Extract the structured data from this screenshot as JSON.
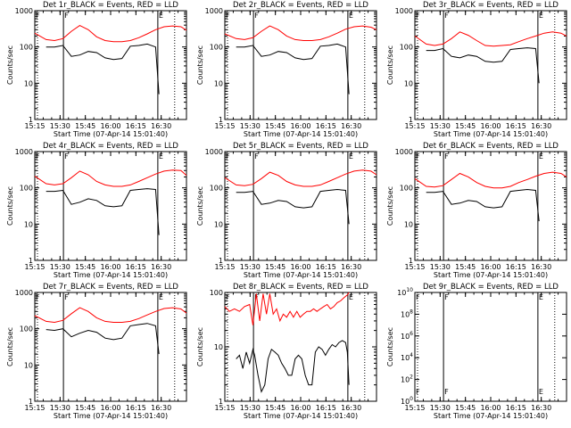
{
  "common": {
    "title_suffix": "_BLACK = Events, RED = LLD",
    "xlabel": "Start Time (07-Apr-14 15:01:40)",
    "ylabel": "Counts/sec",
    "x_ticks": [
      "15:15",
      "15:30",
      "15:45",
      "16:00",
      "16:15",
      "16:30"
    ],
    "y_ticks": [
      "1",
      "10",
      "100",
      "1000"
    ],
    "markers": [
      "F",
      "E"
    ],
    "colors": {
      "events": "#000000",
      "lld": "#ff0000"
    }
  },
  "chart_data": [
    {
      "type": "line",
      "title": "Det 1r_BLACK = Events, RED = LLD",
      "xlim_min": [
        13.3,
        103.3
      ],
      "ylim_log10": [
        0,
        3
      ],
      "series": [
        {
          "name": "BLACK = Events",
          "x": [
            20,
            25,
            30,
            35,
            40,
            45,
            50,
            55,
            60,
            65,
            70,
            75,
            80,
            85,
            87
          ],
          "y": [
            100,
            100,
            110,
            55,
            60,
            75,
            70,
            50,
            45,
            48,
            105,
            110,
            120,
            100,
            5
          ]
        },
        {
          "name": "RED = LLD",
          "x": [
            13.3,
            20,
            25,
            30,
            35,
            40,
            45,
            50,
            55,
            60,
            65,
            70,
            75,
            80,
            85,
            90,
            95,
            100,
            103.3
          ],
          "y": [
            240,
            160,
            150,
            170,
            270,
            390,
            300,
            190,
            150,
            140,
            140,
            150,
            180,
            230,
            300,
            360,
            380,
            360,
            290
          ]
        }
      ]
    },
    {
      "type": "line",
      "title": "Det 2r_BLACK = Events, RED = LLD",
      "xlim_min": [
        13.3,
        103.3
      ],
      "ylim_log10": [
        0,
        3
      ],
      "series": [
        {
          "name": "BLACK = Events",
          "x": [
            20,
            25,
            30,
            35,
            40,
            45,
            50,
            55,
            60,
            65,
            70,
            75,
            80,
            85,
            87
          ],
          "y": [
            100,
            100,
            110,
            55,
            60,
            75,
            70,
            50,
            45,
            48,
            105,
            110,
            120,
            100,
            5
          ]
        },
        {
          "name": "RED = LLD",
          "x": [
            13.3,
            20,
            25,
            30,
            35,
            40,
            45,
            50,
            55,
            60,
            65,
            70,
            75,
            80,
            85,
            90,
            95,
            100,
            103.3
          ],
          "y": [
            230,
            170,
            160,
            180,
            270,
            380,
            300,
            200,
            160,
            150,
            150,
            160,
            190,
            240,
            310,
            360,
            380,
            350,
            300
          ]
        }
      ]
    },
    {
      "type": "line",
      "title": "Det 3r_BLACK = Events, RED = LLD",
      "xlim_min": [
        13.3,
        103.3
      ],
      "ylim_log10": [
        0,
        3
      ],
      "series": [
        {
          "name": "BLACK = Events",
          "x": [
            20,
            25,
            30,
            35,
            40,
            45,
            50,
            55,
            60,
            65,
            70,
            75,
            80,
            85,
            87
          ],
          "y": [
            80,
            80,
            90,
            55,
            50,
            60,
            55,
            40,
            38,
            40,
            85,
            90,
            95,
            90,
            10
          ]
        },
        {
          "name": "RED = LLD",
          "x": [
            13.3,
            20,
            25,
            30,
            35,
            40,
            45,
            50,
            55,
            60,
            65,
            70,
            75,
            80,
            85,
            90,
            95,
            100,
            103.3
          ],
          "y": [
            200,
            120,
            110,
            120,
            170,
            260,
            210,
            150,
            110,
            105,
            110,
            115,
            140,
            170,
            200,
            240,
            260,
            240,
            200
          ]
        }
      ]
    },
    {
      "type": "line",
      "title": "Det 4r_BLACK = Events, RED = LLD",
      "xlim_min": [
        13.3,
        103.3
      ],
      "ylim_log10": [
        0,
        3
      ],
      "series": [
        {
          "name": "BLACK = Events",
          "x": [
            20,
            25,
            30,
            35,
            40,
            45,
            50,
            55,
            60,
            65,
            70,
            75,
            80,
            85,
            87
          ],
          "y": [
            80,
            80,
            85,
            35,
            40,
            50,
            45,
            32,
            30,
            32,
            85,
            90,
            95,
            90,
            5
          ]
        },
        {
          "name": "RED = LLD",
          "x": [
            13.3,
            20,
            25,
            30,
            35,
            40,
            45,
            50,
            55,
            60,
            65,
            70,
            75,
            80,
            85,
            90,
            95,
            100,
            103.3
          ],
          "y": [
            210,
            130,
            120,
            130,
            190,
            290,
            230,
            150,
            120,
            110,
            110,
            120,
            150,
            190,
            240,
            290,
            310,
            300,
            220
          ]
        }
      ]
    },
    {
      "type": "line",
      "title": "Det 5r_BLACK = Events, RED = LLD",
      "xlim_min": [
        13.3,
        103.3
      ],
      "ylim_log10": [
        0,
        3
      ],
      "series": [
        {
          "name": "BLACK = Events",
          "x": [
            20,
            25,
            30,
            35,
            40,
            45,
            50,
            55,
            60,
            65,
            70,
            75,
            80,
            85,
            87
          ],
          "y": [
            75,
            75,
            80,
            35,
            38,
            45,
            42,
            30,
            28,
            30,
            80,
            85,
            90,
            85,
            10
          ]
        },
        {
          "name": "RED = LLD",
          "x": [
            13.3,
            20,
            25,
            30,
            35,
            40,
            45,
            50,
            55,
            60,
            65,
            70,
            75,
            80,
            85,
            90,
            95,
            100,
            103.3
          ],
          "y": [
            190,
            120,
            115,
            125,
            180,
            270,
            220,
            150,
            120,
            110,
            110,
            120,
            150,
            190,
            240,
            290,
            310,
            290,
            230
          ]
        }
      ]
    },
    {
      "type": "line",
      "title": "Det 6r_BLACK = Events, RED = LLD",
      "xlim_min": [
        13.3,
        103.3
      ],
      "ylim_log10": [
        0,
        3
      ],
      "series": [
        {
          "name": "BLACK = Events",
          "x": [
            20,
            25,
            30,
            35,
            40,
            45,
            50,
            55,
            60,
            65,
            70,
            75,
            80,
            85,
            87
          ],
          "y": [
            75,
            75,
            80,
            35,
            38,
            45,
            42,
            30,
            28,
            30,
            80,
            85,
            90,
            85,
            12
          ]
        },
        {
          "name": "RED = LLD",
          "x": [
            13.3,
            20,
            25,
            30,
            35,
            40,
            45,
            50,
            55,
            60,
            65,
            70,
            75,
            80,
            85,
            90,
            95,
            100,
            103.3
          ],
          "y": [
            180,
            110,
            105,
            115,
            170,
            250,
            200,
            140,
            110,
            100,
            100,
            110,
            140,
            170,
            210,
            250,
            270,
            250,
            200
          ]
        }
      ]
    },
    {
      "type": "line",
      "title": "Det 7r_BLACK = Events, RED = LLD",
      "xlim_min": [
        13.3,
        103.3
      ],
      "ylim_log10": [
        0,
        3
      ],
      "series": [
        {
          "name": "BLACK = Events",
          "x": [
            20,
            25,
            30,
            35,
            40,
            45,
            50,
            55,
            60,
            65,
            70,
            75,
            80,
            85,
            87
          ],
          "y": [
            95,
            90,
            100,
            60,
            75,
            90,
            80,
            55,
            50,
            55,
            120,
            130,
            140,
            120,
            20
          ]
        },
        {
          "name": "RED = LLD",
          "x": [
            13.3,
            20,
            25,
            30,
            35,
            40,
            45,
            50,
            55,
            60,
            65,
            70,
            75,
            80,
            85,
            90,
            95,
            100,
            103.3
          ],
          "y": [
            230,
            160,
            150,
            170,
            260,
            380,
            300,
            200,
            160,
            150,
            150,
            160,
            190,
            240,
            300,
            360,
            380,
            350,
            270
          ]
        }
      ]
    },
    {
      "type": "line",
      "title": "Det 8r_BLACK = Events, RED = LLD",
      "xlim_min": [
        13.3,
        103.3
      ],
      "ylim_log10": [
        0,
        2
      ],
      "series": [
        {
          "name": "BLACK = Events",
          "x": [
            20,
            22,
            24,
            26,
            28,
            30,
            31,
            33,
            35,
            37,
            39,
            41,
            43,
            45,
            47,
            49,
            51,
            53,
            55,
            57,
            59,
            61,
            63,
            65,
            67,
            69,
            71,
            73,
            75,
            77,
            79,
            81,
            83,
            85,
            86,
            87
          ],
          "y": [
            6,
            7,
            4,
            8,
            5,
            9,
            7,
            3,
            1.5,
            2,
            6,
            9,
            8,
            7,
            5,
            4,
            3,
            3,
            6,
            7,
            6,
            3,
            2,
            2,
            8,
            10,
            9,
            7,
            9,
            11,
            10,
            12,
            13,
            12,
            8,
            2
          ]
        },
        {
          "name": "RED = LLD",
          "x": [
            13.3,
            16,
            19,
            22,
            25,
            28,
            30,
            32,
            34,
            36,
            38,
            40,
            42,
            44,
            46,
            48,
            50,
            52,
            54,
            56,
            58,
            60,
            62,
            64,
            66,
            68,
            70,
            72,
            74,
            76,
            78,
            80,
            82,
            84,
            86,
            87
          ],
          "y": [
            55,
            45,
            50,
            45,
            55,
            60,
            25,
            95,
            30,
            95,
            40,
            95,
            40,
            50,
            30,
            40,
            35,
            45,
            35,
            45,
            35,
            40,
            45,
            45,
            50,
            45,
            50,
            55,
            60,
            50,
            55,
            65,
            70,
            80,
            90,
            100
          ]
        }
      ]
    },
    {
      "type": "line",
      "title": "Det 9r_BLACK = Events, RED = LLD",
      "xlim_min": [
        13.3,
        103.3
      ],
      "ylim_log10": [
        0,
        10
      ],
      "y_ticks": [
        "10^0",
        "10^2",
        "10^4",
        "10^6",
        "10^8",
        "10^10"
      ],
      "series": []
    }
  ]
}
